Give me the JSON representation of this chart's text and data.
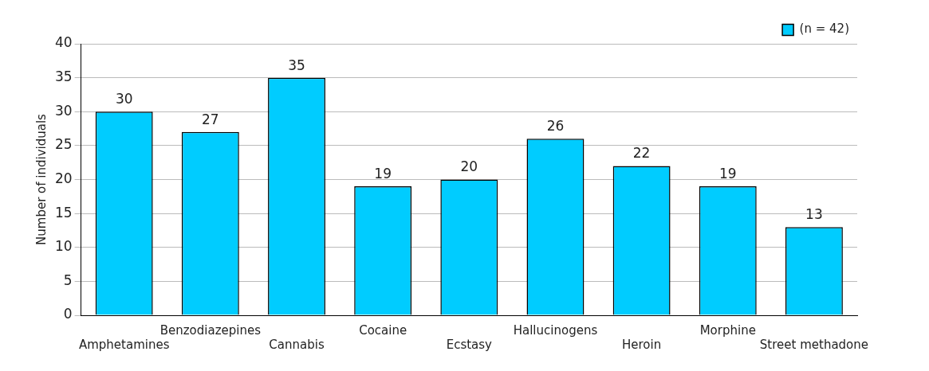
{
  "chart_data": {
    "type": "bar",
    "ylabel": "Number of individuals",
    "categories": [
      "Amphetamines",
      "Benzodiazepines",
      "Cannabis",
      "Cocaine",
      "Ecstasy",
      "Hallucinogens",
      "Heroin",
      "Morphine",
      "Street methadone"
    ],
    "series": [
      {
        "name": "(n = 42)",
        "color": "#00ccff",
        "values": [
          30,
          27,
          35,
          19,
          20,
          26,
          22,
          19,
          13
        ]
      }
    ],
    "ylim": [
      0,
      40
    ],
    "yticks": [
      0,
      5,
      10,
      15,
      20,
      25,
      30,
      35,
      40
    ],
    "grid": "y",
    "legend": "top right",
    "data_labels": true
  }
}
